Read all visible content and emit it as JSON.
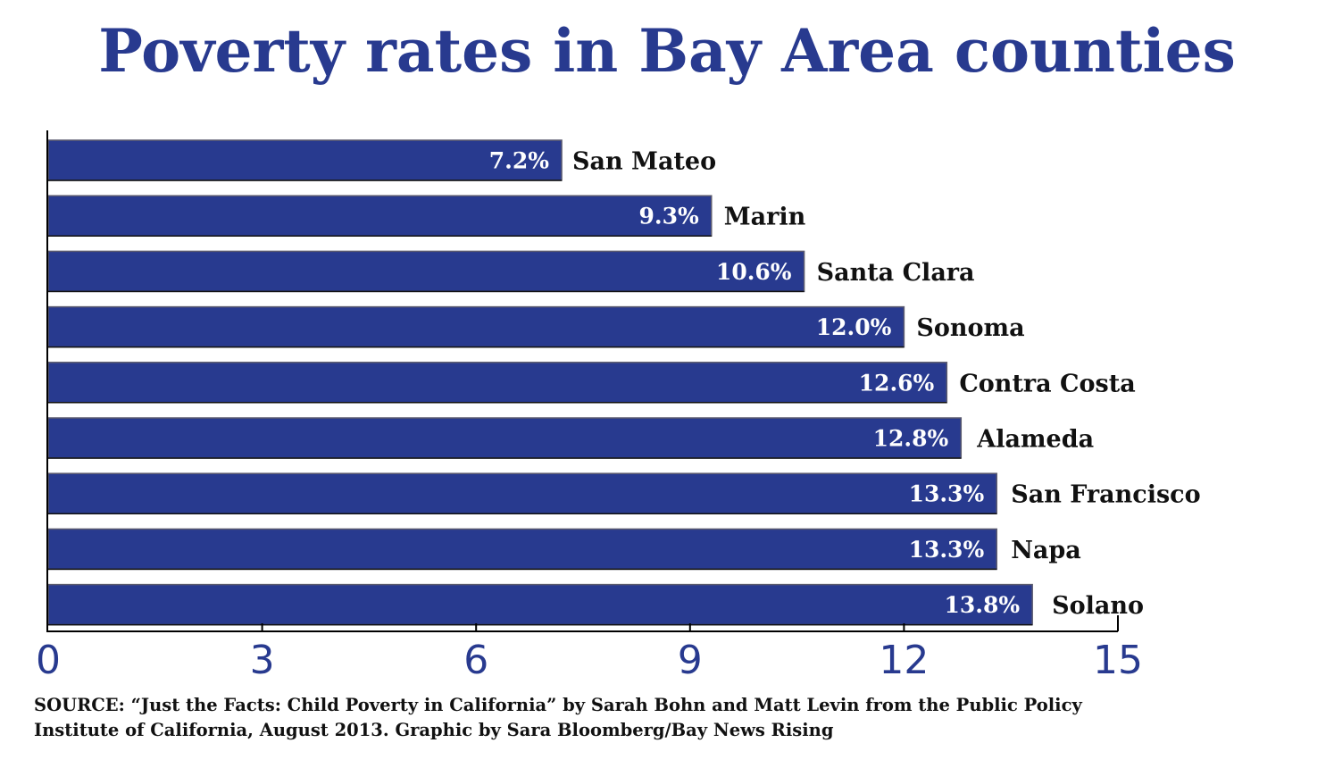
{
  "chart_data": {
    "type": "bar",
    "orientation": "horizontal",
    "title": "Poverty rates in Bay Area counties",
    "categories": [
      "San Mateo",
      "Marin",
      "Santa Clara",
      "Sonoma",
      "Contra Costa",
      "Alameda",
      "San Francisco",
      "Napa",
      "Solano"
    ],
    "values": [
      7.2,
      9.3,
      10.6,
      12.0,
      12.6,
      12.8,
      13.3,
      13.3,
      13.8
    ],
    "value_labels": [
      "7.2%",
      "9.3%",
      "10.6%",
      "12.0%",
      "12.6%",
      "12.8%",
      "13.3%",
      "13.3%",
      "13.8%"
    ],
    "xlabel": "",
    "ylabel": "",
    "xlim": [
      0,
      15
    ],
    "x_ticks": [
      0,
      3,
      6,
      9,
      12,
      15
    ],
    "x_tick_labels": [
      "0",
      "3",
      "6",
      "9",
      "12",
      "15"
    ],
    "grid": false,
    "legend": "none",
    "colors": {
      "bar": "#283a8f",
      "bar_edge": "#5a5a6e",
      "title": "#283a8f",
      "tick_label": "#283a8f",
      "category_label": "#111111",
      "value_label": "#ffffff"
    }
  },
  "source": {
    "line1": "SOURCE: “Just the Facts: Child Poverty in California” by Sarah Bohn and Matt Levin from the Public Policy",
    "line2": "Institute of California, August 2013. Graphic by Sara Bloomberg/Bay News Rising"
  }
}
